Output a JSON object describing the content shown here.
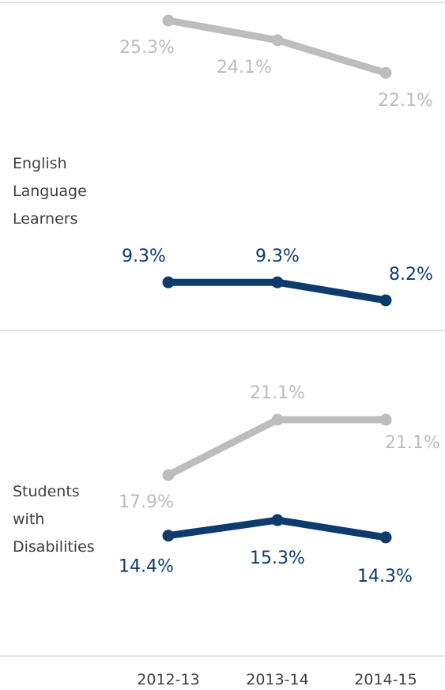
{
  "chart_data": [
    {
      "type": "line",
      "panel_label": [
        "English",
        "Language",
        "Learners"
      ],
      "categories": [
        "2012-13",
        "2013-14",
        "2014-15"
      ],
      "series": [
        {
          "color": "#bdbdbd",
          "values": [
            25.3,
            24.1,
            22.1
          ],
          "labels": [
            "25.3%",
            "24.1%",
            "22.1%"
          ]
        },
        {
          "color": "#0d3b6e",
          "values": [
            9.3,
            9.3,
            8.2
          ],
          "labels": [
            "9.3%",
            "9.3%",
            "8.2%"
          ]
        }
      ]
    },
    {
      "type": "line",
      "panel_label": [
        "Students",
        "with",
        "Disabilities"
      ],
      "categories": [
        "2012-13",
        "2013-14",
        "2014-15"
      ],
      "series": [
        {
          "color": "#bdbdbd",
          "values": [
            17.9,
            21.1,
            21.1
          ],
          "labels": [
            "17.9%",
            "21.1%",
            "21.1%"
          ]
        },
        {
          "color": "#0d3b6e",
          "values": [
            14.4,
            15.3,
            14.3
          ],
          "labels": [
            "14.4%",
            "15.3%",
            "14.3%"
          ]
        }
      ]
    }
  ],
  "categories": [
    "2012-13",
    "2013-14",
    "2014-15"
  ]
}
